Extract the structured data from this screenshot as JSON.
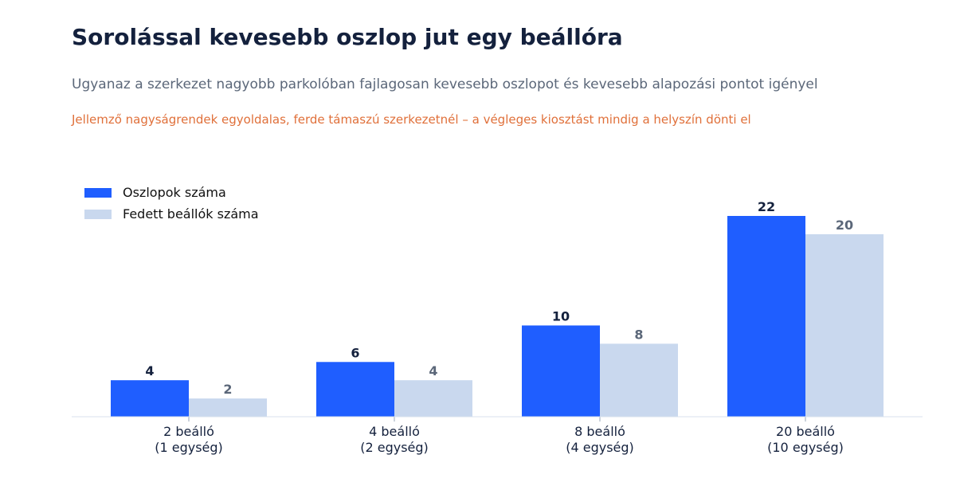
{
  "header": {
    "title": "Sorolással kevesebb oszlop jut egy beállóra",
    "subtitle": "Ugyanaz a szerkezet nagyobb parkolóban fajlagosan kevesebb oszlopot és kevesebb alapozási pontot igényel",
    "note": "Jellemző nagyságrendek egyoldalas, ferde támaszú szerkezetnél – a végleges kiosztást mindig a helyszín dönti el"
  },
  "colors": {
    "title": "#14213d",
    "subtitle": "#5b6779",
    "note": "#e0703a",
    "series_primary": "#1f5eff",
    "series_secondary": "#c9d8ee",
    "label_primary": "#14213d",
    "label_secondary": "#5b6779",
    "axis": "#d9e2ec"
  },
  "chart_data": {
    "type": "bar",
    "categories": [
      [
        "2 beálló",
        "(1 egység)"
      ],
      [
        "4 beálló",
        "(2 egység)"
      ],
      [
        "8 beálló",
        "(4 egység)"
      ],
      [
        "20 beálló",
        "(10 egység)"
      ]
    ],
    "series": [
      {
        "name": "Oszlopok száma",
        "values": [
          4,
          6,
          10,
          22
        ]
      },
      {
        "name": "Fedett beállók száma",
        "values": [
          2,
          4,
          8,
          20
        ]
      }
    ],
    "legend_position": "top-left",
    "ylim": [
      0,
      22
    ],
    "grid": false,
    "data_labels": true
  }
}
